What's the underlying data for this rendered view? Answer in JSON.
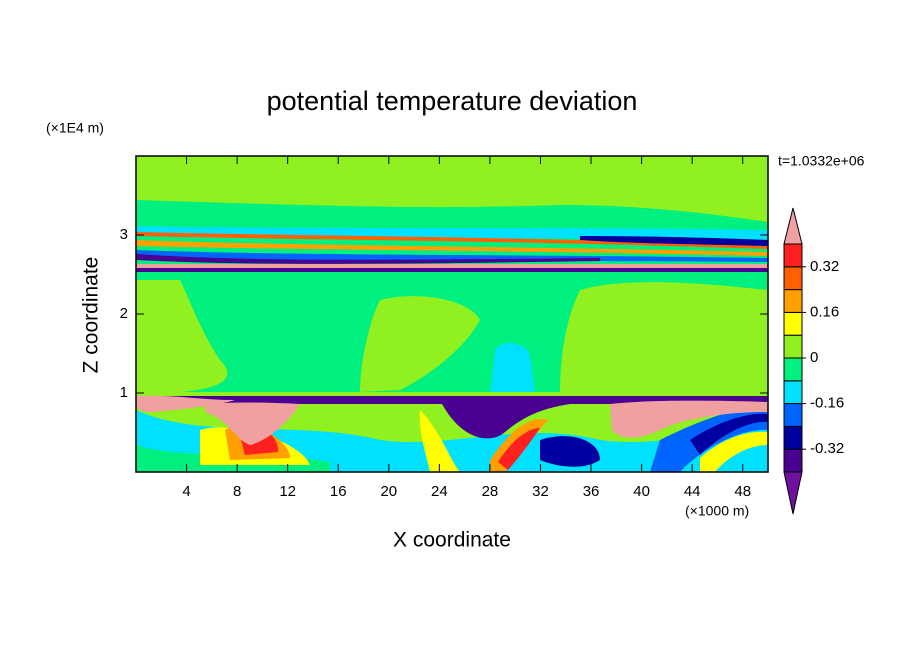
{
  "chart_data": {
    "type": "contour",
    "title": "potential temperature deviation",
    "x_label": "X coordinate",
    "y_label": "Z coordinate",
    "x_unit": "(×1000 m)",
    "y_unit": "(×1E4 m)",
    "annotation": "t=1.0332e+06",
    "xlim": [
      0,
      50
    ],
    "xticks": [
      4,
      8,
      12,
      16,
      20,
      24,
      28,
      32,
      36,
      40,
      44,
      48
    ],
    "ylim": [
      0,
      4
    ],
    "yticks": [
      1,
      2,
      3
    ],
    "clim": [
      -0.4,
      0.4
    ],
    "cticks": [
      -0.32,
      -0.16,
      0,
      0.16,
      0.32
    ],
    "colors": [
      "#7010a0",
      "#4a0090",
      "#0000a0",
      "#0064ff",
      "#00e0ff",
      "#00f080",
      "#90f020",
      "#ffff00",
      "#ffa000",
      "#ff6000",
      "#ff2020",
      "#f0a0a0"
    ]
  }
}
